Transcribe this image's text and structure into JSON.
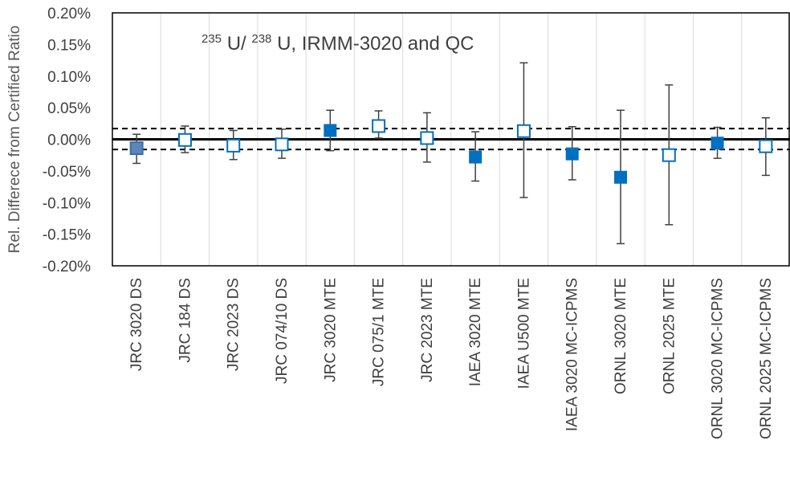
{
  "chart_data": {
    "type": "scatter",
    "ylabel": "Rel. Differece from Certified Ratio",
    "annotation": {
      "sup1": "235",
      "part1": "U/",
      "sup2": "238",
      "part2": "U, IRMM-3020 and QC"
    },
    "ylim": [
      -0.2,
      0.2
    ],
    "yticks": [
      -0.2,
      -0.15,
      -0.1,
      -0.05,
      0.0,
      0.05,
      0.1,
      0.15,
      0.2
    ],
    "ytick_labels": [
      "-0.20%",
      "-0.15%",
      "-0.10%",
      "-0.05%",
      "0.00%",
      "0.05%",
      "0.10%",
      "0.15%",
      "0.20%"
    ],
    "categories": [
      "JRC 3020 DS",
      "JRC 184 DS",
      "JRC 2023 DS",
      "JRC 074/10 DS",
      "JRC 3020 MTE",
      "JRC 075/1 MTE",
      "JRC 2023 MTE",
      "IAEA 3020 MTE",
      "IAEA U500 MTE",
      "IAEA 3020 MC-ICPMS",
      "ORNL 3020 MTE",
      "ORNL 2025 MTE",
      "ORNL 3020 MC-ICPMS",
      "ORNL 2025 MC-ICPMS"
    ],
    "values": [
      -0.014,
      -0.001,
      -0.01,
      -0.008,
      0.014,
      0.021,
      0.002,
      -0.028,
      0.013,
      -0.023,
      -0.06,
      -0.025,
      -0.006,
      -0.011
    ],
    "error_low": [
      -0.038,
      -0.021,
      -0.032,
      -0.03,
      -0.018,
      0.002,
      -0.036,
      -0.066,
      -0.092,
      -0.064,
      -0.165,
      -0.135,
      -0.03,
      -0.057
    ],
    "error_high": [
      0.008,
      0.021,
      0.014,
      0.016,
      0.046,
      0.045,
      0.042,
      0.012,
      0.121,
      0.02,
      0.046,
      0.086,
      0.019,
      0.034
    ],
    "marker_style": [
      "filled-gray",
      "open",
      "open",
      "open",
      "filled",
      "open",
      "open",
      "filled",
      "open",
      "filled",
      "filled",
      "open",
      "filled",
      "open"
    ],
    "reference_line": 0.0,
    "band": [
      -0.016,
      0.017
    ],
    "grid": "vertical",
    "colors": {
      "marker": "#0070c0",
      "marker_first": "#3a6fa8",
      "error_bar": "#404040",
      "reference": "#000000",
      "grid": "#d9d9d9",
      "axis": "#000000"
    }
  }
}
